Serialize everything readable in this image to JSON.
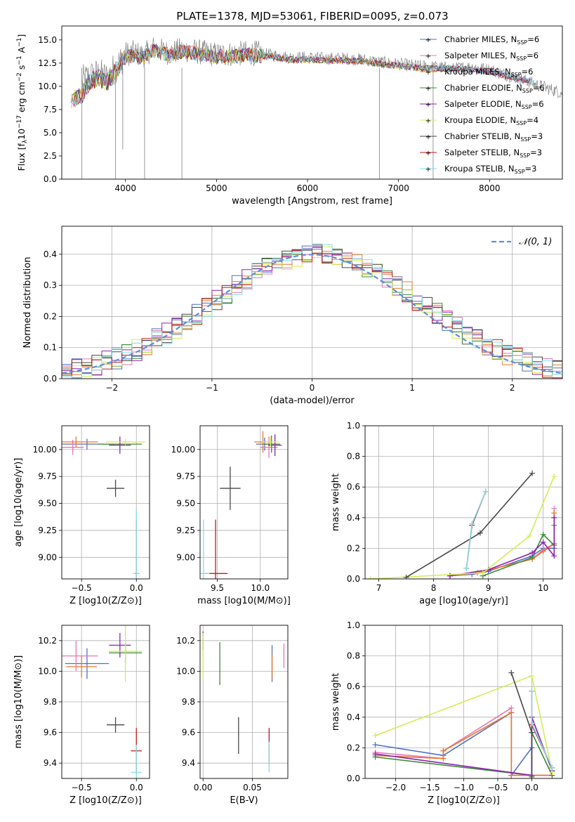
{
  "figure": {
    "title": "PLATE=1378, MJD=53061, FIBERID=0095, z=0.073"
  },
  "series_styles": [
    {
      "name": "Chabrier MILES",
      "color": "#4f6fc8"
    },
    {
      "name": "Salpeter MILES",
      "color": "#e877b4"
    },
    {
      "name": "Kroupa MILES",
      "color": "#e57a2e"
    },
    {
      "name": "Chabrier ELODIE",
      "color": "#3d8a36"
    },
    {
      "name": "Salpeter ELODIE",
      "color": "#8b22b4"
    },
    {
      "name": "Kroupa ELODIE",
      "color": "#d4ec55"
    },
    {
      "name": "Chabrier STELIB",
      "color": "#474747"
    },
    {
      "name": "Salpeter STELIB",
      "color": "#c21a12"
    },
    {
      "name": "Kroupa STELIB",
      "color": "#82dfe8"
    }
  ],
  "chart_data": [
    {
      "id": "spectrum",
      "type": "line",
      "title": "PLATE=1378, MJD=53061, FIBERID=0095, z=0.073",
      "xlabel": "wavelength [Angstrom, rest frame]",
      "xlim": [
        3300,
        8800
      ],
      "ylim": [
        0,
        16.5
      ],
      "xticks": [
        4000,
        5000,
        6000,
        7000,
        8000
      ],
      "yticks": [
        0.0,
        2.5,
        5.0,
        7.5,
        10.0,
        12.5,
        15.0
      ],
      "grid": false,
      "legend": "upper right",
      "legend_entries": [
        "Chabrier MILES, N_SSP=6",
        "Salpeter MILES, N_SSP=6",
        "Kroupa MILES, N_SSP=6",
        "Chabrier ELODIE, N_SSP=6",
        "Salpeter ELODIE, N_SSP=6",
        "Kroupa ELODIE, N_SSP=4",
        "Chabrier STELIB, N_SSP=3",
        "Salpeter STELIB, N_SSP=3",
        "Kroupa STELIB, N_SSP=3"
      ],
      "data_gray": {
        "x": [
          3520,
          3600,
          3700,
          3800,
          3900,
          3950,
          4000,
          4100,
          4200,
          4300,
          4400,
          4500,
          4600,
          4700,
          4800,
          4900,
          5000,
          5200,
          5400,
          5600,
          5800,
          6000,
          6200,
          6400,
          6600,
          6800,
          7000,
          7200,
          7400,
          7600,
          7800,
          8000,
          8200,
          8400,
          8600,
          8800
        ],
        "y": [
          10.5,
          11.0,
          11.3,
          10.9,
          12.2,
          12.8,
          13.5,
          13.6,
          13.3,
          14.1,
          13.8,
          13.6,
          13.9,
          13.9,
          13.7,
          13.6,
          13.4,
          13.5,
          13.6,
          13.4,
          13.1,
          13.1,
          13.0,
          13.0,
          12.9,
          12.6,
          12.4,
          12.2,
          12.1,
          11.9,
          12.1,
          11.8,
          11.2,
          10.6,
          9.9,
          9.3
        ]
      },
      "model": {
        "x": [
          3400,
          3520,
          3600,
          3700,
          3800,
          3900,
          3950,
          4000,
          4100,
          4200,
          4300,
          4400,
          4500,
          4600,
          4700,
          4800,
          4900,
          5000,
          5200,
          5400,
          5600,
          5800,
          6000,
          6200,
          6400,
          6600,
          6800,
          7000,
          7200,
          7400,
          7600,
          7800,
          8000,
          8200,
          8400
        ],
        "y": [
          8.5,
          9.0,
          10.5,
          10.9,
          10.5,
          11.7,
          12.5,
          13.2,
          13.3,
          13.1,
          13.9,
          13.6,
          13.4,
          13.7,
          13.7,
          13.5,
          13.4,
          13.2,
          13.3,
          13.4,
          13.2,
          12.9,
          12.9,
          12.8,
          12.8,
          12.7,
          12.4,
          12.2,
          12.0,
          11.9,
          11.9,
          11.8,
          11.6,
          11.1,
          10.6
        ]
      },
      "dips": [
        {
          "x": 3520,
          "y": 0.0
        },
        {
          "x": 3890,
          "y": 0.0
        },
        {
          "x": 3970,
          "y": 3.2
        },
        {
          "x": 4210,
          "y": 0.0
        },
        {
          "x": 4620,
          "y": 0.0
        },
        {
          "x": 6790,
          "y": 0.0
        },
        {
          "x": 7380,
          "y": 0.0
        }
      ]
    },
    {
      "id": "residuals",
      "type": "histogram",
      "xlabel": "(data-model)/error",
      "ylabel": "Normed distribution",
      "xlim": [
        -2.5,
        2.5
      ],
      "ylim": [
        0,
        0.49
      ],
      "xticks": [
        -2,
        -1,
        0,
        1,
        2
      ],
      "yticks": [
        0.0,
        0.1,
        0.2,
        0.3,
        0.4
      ],
      "grid": true,
      "legend": "upper right",
      "reference_label": "𝒩(0, 1)",
      "bin_edges_start": -2.5,
      "bin_width": 0.1
    },
    {
      "id": "age-vs-Z",
      "type": "errorbar",
      "xlabel": "Z [log10(Z/Z⊙)]",
      "ylabel": "age  [log10(age/yr)]",
      "xlim": [
        -0.68,
        0.12
      ],
      "ylim": [
        8.8,
        10.22
      ],
      "xticks": [
        -0.5,
        0.0
      ],
      "yticks": [
        9.0,
        9.25,
        9.5,
        9.75,
        10.0
      ],
      "grid": true,
      "points": [
        {
          "series": 0,
          "x": -0.45,
          "y": 10.05,
          "xerr": 0.25,
          "yerr": 0.05
        },
        {
          "series": 1,
          "x": -0.58,
          "y": 10.02,
          "xerr": 0.1,
          "yerr": 0.07
        },
        {
          "series": 2,
          "x": -0.55,
          "y": 10.07,
          "xerr": 0.2,
          "yerr": 0.05
        },
        {
          "series": 3,
          "x": -0.15,
          "y": 10.05,
          "xerr": 0.2,
          "yerr": 0.04
        },
        {
          "series": 4,
          "x": -0.15,
          "y": 10.04,
          "xerr": 0.1,
          "yerr": 0.08
        },
        {
          "series": 5,
          "x": -0.1,
          "y": 10.07,
          "xerr": 0.18,
          "yerr": 0.03
        },
        {
          "series": 6,
          "x": -0.19,
          "y": 9.64,
          "xerr": 0.08,
          "yerr": 0.08
        },
        {
          "series": 7,
          "x": 0.0,
          "y": 8.85,
          "xerr": 0.02,
          "yerr": 0.5
        },
        {
          "series": 8,
          "x": 0.0,
          "y": 8.85,
          "xerr": 0.03,
          "yerr": 0.6
        }
      ]
    },
    {
      "id": "age-vs-mass",
      "type": "errorbar",
      "xlabel": "mass [log10(M/M⊙)]",
      "xlim": [
        9.3,
        10.32
      ],
      "ylim": [
        8.8,
        10.22
      ],
      "xticks": [
        9.5,
        10.0
      ],
      "yticks": [
        9.0,
        9.25,
        9.5,
        9.75,
        10.0
      ],
      "grid": true,
      "points": [
        {
          "series": 0,
          "x": 10.05,
          "y": 10.05,
          "xerr": 0.1,
          "yerr": 0.06
        },
        {
          "series": 1,
          "x": 10.1,
          "y": 10.02,
          "xerr": 0.1,
          "yerr": 0.1
        },
        {
          "series": 2,
          "x": 10.03,
          "y": 10.07,
          "xerr": 0.1,
          "yerr": 0.1
        },
        {
          "series": 3,
          "x": 10.13,
          "y": 10.05,
          "xerr": 0.1,
          "yerr": 0.08
        },
        {
          "series": 4,
          "x": 10.17,
          "y": 10.04,
          "xerr": 0.08,
          "yerr": 0.1
        },
        {
          "series": 5,
          "x": 10.12,
          "y": 10.07,
          "xerr": 0.1,
          "yerr": 0.05
        },
        {
          "series": 6,
          "x": 9.65,
          "y": 9.64,
          "xerr": 0.12,
          "yerr": 0.2
        },
        {
          "series": 7,
          "x": 9.48,
          "y": 8.85,
          "xerr": 0.14,
          "yerr": 0.5
        },
        {
          "series": 8,
          "x": 9.34,
          "y": 8.85,
          "xerr": 0.07,
          "yerr": 0.5
        }
      ]
    },
    {
      "id": "weight-vs-age",
      "type": "line",
      "xlabel": "age  [log10(age/yr)]",
      "ylabel": "mass weight",
      "xlim": [
        6.75,
        10.35
      ],
      "ylim": [
        0,
        1.0
      ],
      "xticks": [
        7,
        8,
        9,
        10
      ],
      "yticks": [
        0.0,
        0.2,
        0.4,
        0.6,
        0.8,
        1.0
      ],
      "grid": true,
      "series": [
        {
          "series": 0,
          "x": [
            8.3,
            8.7,
            9.0,
            9.8,
            10.0,
            10.2,
            10.2
          ],
          "y": [
            0.02,
            0.03,
            0.05,
            0.15,
            0.2,
            0.2,
            0.4
          ]
        },
        {
          "series": 1,
          "x": [
            8.3,
            8.8,
            9.8,
            10.0,
            10.2,
            10.2
          ],
          "y": [
            0.02,
            0.04,
            0.13,
            0.19,
            0.23,
            0.46
          ]
        },
        {
          "series": 2,
          "x": [
            8.3,
            8.8,
            9.8,
            10.0,
            10.2,
            10.2
          ],
          "y": [
            0.02,
            0.04,
            0.13,
            0.18,
            0.23,
            0.43
          ]
        },
        {
          "series": 3,
          "x": [
            8.9,
            9.8,
            10.0,
            10.2,
            10.2
          ],
          "y": [
            0.02,
            0.14,
            0.29,
            0.22,
            0.35
          ]
        },
        {
          "series": 4,
          "x": [
            8.3,
            9.0,
            9.8,
            10.0,
            10.2,
            10.2
          ],
          "y": [
            0.02,
            0.06,
            0.17,
            0.24,
            0.15,
            0.4
          ]
        },
        {
          "series": 5,
          "x": [
            6.85,
            8.9,
            9.75,
            10.2
          ],
          "y": [
            0.0,
            0.04,
            0.28,
            0.67
          ]
        },
        {
          "series": 6,
          "x": [
            7.5,
            8.85,
            9.8
          ],
          "y": [
            0.01,
            0.3,
            0.69
          ]
        },
        {
          "series": 7,
          "x": [
            8.6,
            8.7,
            8.95
          ],
          "y": [
            0.07,
            0.35,
            0.57
          ]
        },
        {
          "series": 8,
          "x": [
            8.6,
            8.7,
            8.95
          ],
          "y": [
            0.07,
            0.36,
            0.57
          ]
        }
      ]
    },
    {
      "id": "mass-vs-Z",
      "type": "errorbar",
      "xlabel": "Z [log10(Z/Z⊙)]",
      "ylabel": "mass [log10(M/M⊙)]",
      "xlim": [
        -0.68,
        0.12
      ],
      "ylim": [
        9.3,
        10.3
      ],
      "xticks": [
        -0.5,
        0.0
      ],
      "yticks": [
        9.4,
        9.6,
        9.8,
        10.0,
        10.2
      ],
      "grid": true,
      "points": [
        {
          "series": 0,
          "x": -0.45,
          "y": 10.05,
          "xerr": 0.2,
          "yerr": 0.1
        },
        {
          "series": 1,
          "x": -0.55,
          "y": 10.1,
          "xerr": 0.2,
          "yerr": 0.1
        },
        {
          "series": 2,
          "x": -0.5,
          "y": 10.03,
          "xerr": 0.14,
          "yerr": 0.07
        },
        {
          "series": 3,
          "x": -0.1,
          "y": 10.12,
          "xerr": 0.15,
          "yerr": 0.07
        },
        {
          "series": 4,
          "x": -0.15,
          "y": 10.17,
          "xerr": 0.1,
          "yerr": 0.08
        },
        {
          "series": 5,
          "x": -0.1,
          "y": 10.13,
          "xerr": 0.15,
          "yerr": 0.2
        },
        {
          "series": 6,
          "x": -0.19,
          "y": 9.65,
          "xerr": 0.08,
          "yerr": 0.05
        },
        {
          "series": 7,
          "x": 0.0,
          "y": 9.48,
          "xerr": 0.05,
          "yerr": 0.15
        },
        {
          "series": 8,
          "x": 0.0,
          "y": 9.34,
          "xerr": 0.05,
          "yerr": 0.18
        }
      ]
    },
    {
      "id": "mass-vs-EBV",
      "type": "errorbar",
      "xlabel": "E(B-V)",
      "xlim": [
        -0.003,
        0.086
      ],
      "ylim": [
        9.3,
        10.3
      ],
      "xticks": [
        0.0,
        0.05
      ],
      "yticks": [
        9.4,
        9.6,
        9.8,
        10.0,
        10.2
      ],
      "grid": true,
      "points": [
        {
          "series": 0,
          "x": 0.07,
          "y": 10.05,
          "xerr": 0,
          "yerr": 0.12
        },
        {
          "series": 1,
          "x": 0.082,
          "y": 10.1,
          "xerr": 0,
          "yerr": 0.08
        },
        {
          "series": 2,
          "x": 0.07,
          "y": 10.03,
          "xerr": 0,
          "yerr": 0.08
        },
        {
          "series": 3,
          "x": 0.017,
          "y": 10.05,
          "xerr": 0,
          "yerr": 0.14
        },
        {
          "series": 4,
          "x": 0.0,
          "y": 10.2,
          "xerr": 0,
          "yerr": 0.06
        },
        {
          "series": 5,
          "x": 0.0,
          "y": 10.1,
          "xerr": 0,
          "yerr": 0.15
        },
        {
          "series": 6,
          "x": 0.036,
          "y": 9.58,
          "xerr": 0,
          "yerr": 0.12
        },
        {
          "series": 7,
          "x": 0.067,
          "y": 9.51,
          "xerr": 0,
          "yerr": 0.12
        },
        {
          "series": 8,
          "x": 0.067,
          "y": 9.44,
          "xerr": 0,
          "yerr": 0.1
        }
      ]
    },
    {
      "id": "weight-vs-Z",
      "type": "line",
      "xlabel": "Z [log10(Z/Z⊙)]",
      "ylabel": "mass weight",
      "xlim": [
        -2.45,
        0.45
      ],
      "ylim": [
        0,
        1.0
      ],
      "xticks": [
        -2.0,
        -1.5,
        -1.0,
        -0.5,
        0.0
      ],
      "yticks": [
        0.0,
        0.2,
        0.4,
        0.6,
        0.8,
        1.0
      ],
      "grid": true,
      "series": [
        {
          "series": 0,
          "x": [
            -2.3,
            -1.3,
            -0.3,
            -0.3,
            0.0,
            0.0,
            0.3
          ],
          "y": [
            0.22,
            0.15,
            0.43,
            0.02,
            0.2,
            0.4,
            0.05
          ]
        },
        {
          "series": 1,
          "x": [
            -2.3,
            -1.3,
            -1.3,
            -0.3,
            -0.3,
            0.3
          ],
          "y": [
            0.17,
            0.13,
            0.18,
            0.46,
            0.02,
            0.02
          ]
        },
        {
          "series": 2,
          "x": [
            -2.3,
            -1.3,
            -1.3,
            -0.3,
            -0.3,
            0.3
          ],
          "y": [
            0.15,
            0.13,
            0.18,
            0.43,
            0.02,
            0.02
          ]
        },
        {
          "series": 3,
          "x": [
            -2.3,
            0.0,
            0.0,
            0.3
          ],
          "y": [
            0.14,
            0.02,
            0.3,
            0.02
          ]
        },
        {
          "series": 4,
          "x": [
            -2.3,
            0.0,
            0.0,
            0.3
          ],
          "y": [
            0.16,
            0.02,
            0.4,
            0.05
          ]
        },
        {
          "series": 5,
          "x": [
            -2.3,
            0.0,
            0.3
          ],
          "y": [
            0.28,
            0.67,
            0.04
          ]
        },
        {
          "series": 6,
          "x": [
            -0.3,
            0.0,
            0.0
          ],
          "y": [
            0.69,
            0.3,
            0.01
          ]
        },
        {
          "series": 7,
          "x": [
            0.0,
            0.0,
            0.3
          ],
          "y": [
            0.57,
            0.35,
            0.07
          ]
        },
        {
          "series": 8,
          "x": [
            0.0,
            0.0,
            0.3
          ],
          "y": [
            0.57,
            0.36,
            0.07
          ]
        }
      ]
    }
  ]
}
